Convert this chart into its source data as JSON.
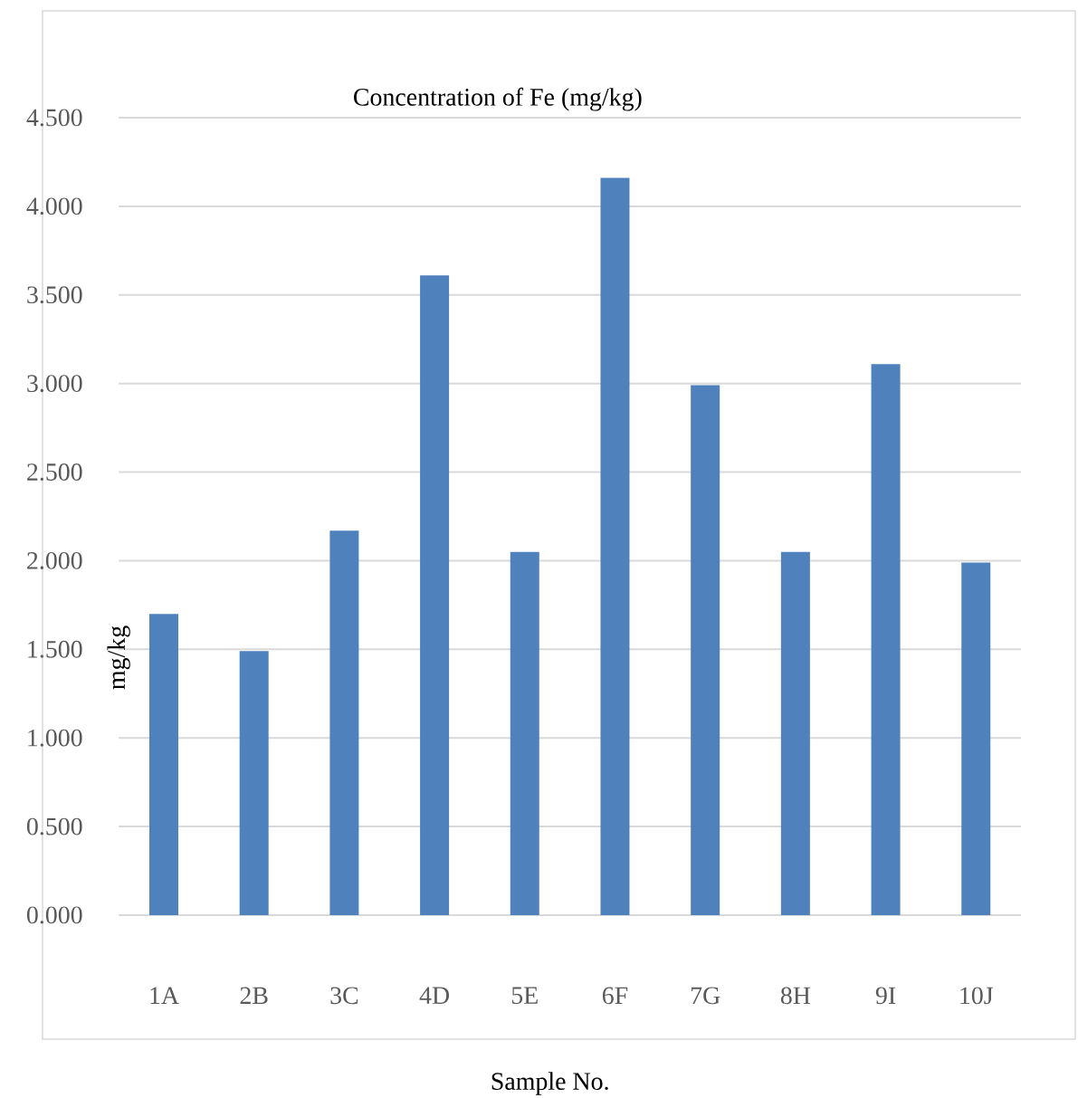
{
  "chart_data": {
    "type": "bar",
    "title": "Concentration of Fe (mg/kg)",
    "xlabel": "Sample No.",
    "ylabel": "mg/kg",
    "categories": [
      "1A",
      "2B",
      "3C",
      "4D",
      "5E",
      "6F",
      "7G",
      "8H",
      "9I",
      "10J"
    ],
    "values": [
      1.7,
      1.49,
      2.17,
      3.61,
      2.05,
      4.16,
      2.99,
      2.05,
      3.11,
      1.99
    ],
    "color": "#4f81bd",
    "ylim": [
      0,
      4.5
    ],
    "yticks": [
      {
        "value": 0,
        "label": "0.000"
      },
      {
        "value": 0.5,
        "label": "0.500"
      },
      {
        "value": 1,
        "label": "1.000"
      },
      {
        "value": 1.5,
        "label": "1.500"
      },
      {
        "value": 2,
        "label": "2.000"
      },
      {
        "value": 2.5,
        "label": "2.500"
      },
      {
        "value": 3,
        "label": "3.000"
      },
      {
        "value": 3.5,
        "label": "3.500"
      },
      {
        "value": 4,
        "label": "4.000"
      },
      {
        "value": 4.5,
        "label": "4.500"
      }
    ],
    "grid": "y"
  }
}
